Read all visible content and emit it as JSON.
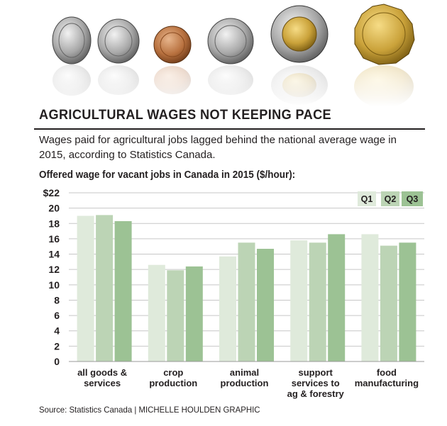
{
  "header": {
    "title": "AGRICULTURAL WAGES NOT KEEPING PACE",
    "subtitle": "Wages paid for agricultural jobs lagged behind the national average wage in 2015, according to Statistics Canada."
  },
  "chart_data": {
    "type": "bar",
    "title": "Offered wage for vacant jobs in Canada in 2015 ($/hour):",
    "categories": [
      [
        "all goods &",
        "services"
      ],
      [
        "crop",
        "production"
      ],
      [
        "animal",
        "production"
      ],
      [
        "support",
        "services to",
        "ag & forestry"
      ],
      [
        "food",
        "manufacturing"
      ]
    ],
    "series": [
      {
        "name": "Q1",
        "color": "#dfeadb",
        "values": [
          19.0,
          12.6,
          13.7,
          15.8,
          16.6
        ]
      },
      {
        "name": "Q2",
        "color": "#bcd4b5",
        "values": [
          19.1,
          11.9,
          15.5,
          15.5,
          15.1
        ]
      },
      {
        "name": "Q3",
        "color": "#9cc294",
        "values": [
          18.3,
          12.4,
          14.7,
          16.6,
          15.5
        ]
      }
    ],
    "yticks": [
      "0",
      "2",
      "4",
      "6",
      "8",
      "10",
      "12",
      "14",
      "16",
      "18",
      "20",
      "$22"
    ],
    "ylim": [
      0,
      22
    ],
    "grid": true,
    "legend": "top-right"
  },
  "footer": {
    "source": "Source: Statistics Canada  |  MICHELLE HOULDEN GRAPHIC"
  }
}
